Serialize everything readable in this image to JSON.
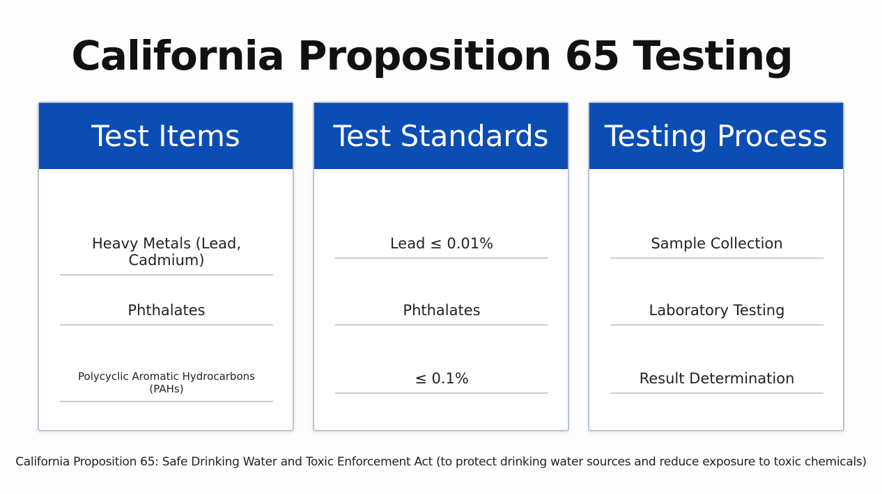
{
  "header": {
    "title": "California Proposition 65 Testing"
  },
  "panels": [
    {
      "title": "Test Items",
      "items": [
        "Heavy Metals (Lead, Cadmium)",
        "Phthalates",
        "Polycyclic Aromatic Hydrocarbons (PAHs)"
      ]
    },
    {
      "title": "Test Standards",
      "items": [
        "Lead ≤ 0.01%",
        "Phthalates",
        "≤ 0.1%"
      ]
    },
    {
      "title": "Testing Process",
      "items": [
        "Sample Collection",
        "Laboratory Testing",
        "Result Determination"
      ]
    }
  ],
  "footer": {
    "note": "California Proposition 65: Safe Drinking Water and Toxic Enforcement Act (to protect drinking water sources and reduce exposure to toxic chemicals)"
  }
}
